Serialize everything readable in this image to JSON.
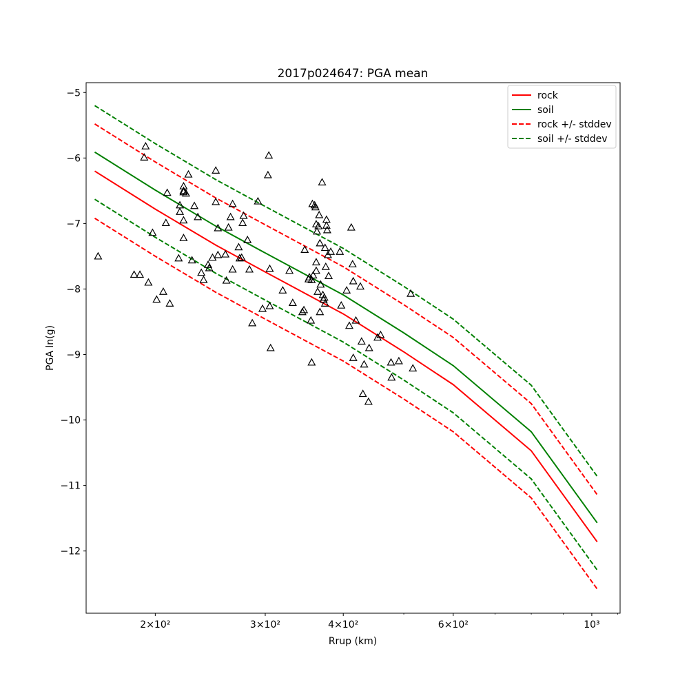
{
  "chart_data": {
    "type": "scatter",
    "title": "2017p024647: PGA mean",
    "xlabel": "Rrup (km)",
    "ylabel": "PGA ln(g)",
    "xscale": "log",
    "xlim": [
      155,
      1110
    ],
    "ylim": [
      -12.95,
      -4.85
    ],
    "grid": false,
    "legend_position": "upper right",
    "x_ticks": [
      {
        "value": 200,
        "label": "2×10²"
      },
      {
        "value": 300,
        "label": "3×10²"
      },
      {
        "value": 400,
        "label": "4×10²"
      },
      {
        "value": 600,
        "label": "6×10²"
      },
      {
        "value": 1000,
        "label": "10³"
      }
    ],
    "y_ticks": [
      {
        "value": -5,
        "label": "−5"
      },
      {
        "value": -6,
        "label": "−6"
      },
      {
        "value": -7,
        "label": "−7"
      },
      {
        "value": -8,
        "label": "−8"
      },
      {
        "value": -9,
        "label": "−9"
      },
      {
        "value": -10,
        "label": "−10"
      },
      {
        "value": -11,
        "label": "−11"
      },
      {
        "value": -12,
        "label": "−12"
      }
    ],
    "series": [
      {
        "name": "rock",
        "kind": "line",
        "color": "#ff0000",
        "dash": "solid",
        "x": [
          160,
          200,
          250,
          300,
          400,
          500,
          600,
          800,
          1020
        ],
        "y": [
          -6.2,
          -6.78,
          -7.33,
          -7.74,
          -8.38,
          -8.96,
          -9.46,
          -10.47,
          -11.86
        ]
      },
      {
        "name": "soil",
        "kind": "line",
        "color": "#008000",
        "dash": "solid",
        "x": [
          160,
          200,
          250,
          300,
          400,
          500,
          600,
          800,
          1020
        ],
        "y": [
          -5.91,
          -6.49,
          -7.04,
          -7.45,
          -8.09,
          -8.67,
          -9.17,
          -10.18,
          -11.57
        ]
      },
      {
        "name": "rock +/- stddev",
        "kind": "line",
        "color": "#ff0000",
        "dash": "dashed",
        "x": [
          160,
          200,
          250,
          300,
          400,
          500,
          600,
          800,
          1020
        ],
        "y": [
          -5.48,
          -6.06,
          -6.61,
          -7.02,
          -7.66,
          -8.24,
          -8.74,
          -9.75,
          -11.14
        ]
      },
      {
        "name": "",
        "kind": "line",
        "color": "#ff0000",
        "dash": "dashed",
        "legend": false,
        "x": [
          160,
          200,
          250,
          300,
          400,
          500,
          600,
          800,
          1020
        ],
        "y": [
          -6.92,
          -7.5,
          -8.05,
          -8.46,
          -9.1,
          -9.68,
          -10.18,
          -11.19,
          -12.58
        ]
      },
      {
        "name": "soil +/- stddev",
        "kind": "line",
        "color": "#008000",
        "dash": "dashed",
        "x": [
          160,
          200,
          250,
          300,
          400,
          500,
          600,
          800,
          1020
        ],
        "y": [
          -5.2,
          -5.78,
          -6.33,
          -6.74,
          -7.38,
          -7.96,
          -8.46,
          -9.47,
          -10.86
        ]
      },
      {
        "name": "",
        "kind": "line",
        "color": "#008000",
        "dash": "dashed",
        "legend": false,
        "x": [
          160,
          200,
          250,
          300,
          400,
          500,
          600,
          800,
          1020
        ],
        "y": [
          -6.63,
          -7.21,
          -7.76,
          -8.17,
          -8.81,
          -9.39,
          -9.89,
          -10.9,
          -12.29
        ]
      }
    ],
    "observations": {
      "marker": "triangle",
      "color": "#000000",
      "points": [
        [
          162,
          -7.5
        ],
        [
          185,
          -7.78
        ],
        [
          189,
          -7.78
        ],
        [
          193,
          -5.82
        ],
        [
          192,
          -5.99
        ],
        [
          195,
          -7.9
        ],
        [
          198,
          -7.14
        ],
        [
          201,
          -8.16
        ],
        [
          206,
          -8.04
        ],
        [
          208,
          -6.99
        ],
        [
          209,
          -6.53
        ],
        [
          211,
          -8.22
        ],
        [
          218,
          -7.53
        ],
        [
          219,
          -6.72
        ],
        [
          219,
          -6.82
        ],
        [
          222,
          -6.43
        ],
        [
          222,
          -6.5
        ],
        [
          222,
          -6.52
        ],
        [
          224,
          -6.54
        ],
        [
          222,
          -6.95
        ],
        [
          222,
          -7.22
        ],
        [
          226,
          -6.25
        ],
        [
          229,
          -7.56
        ],
        [
          231,
          -6.73
        ],
        [
          234,
          -6.9
        ],
        [
          237,
          -7.75
        ],
        [
          239,
          -7.86
        ],
        [
          243,
          -7.63
        ],
        [
          244,
          -7.68
        ],
        [
          247,
          -7.52
        ],
        [
          250,
          -6.19
        ],
        [
          250,
          -6.67
        ],
        [
          252,
          -7.07
        ],
        [
          252,
          -7.48
        ],
        [
          259,
          -7.47
        ],
        [
          260,
          -7.87
        ],
        [
          262,
          -7.06
        ],
        [
          264,
          -6.9
        ],
        [
          266,
          -6.7
        ],
        [
          266,
          -7.7
        ],
        [
          272,
          -7.36
        ],
        [
          273,
          -7.53
        ],
        [
          275,
          -7.52
        ],
        [
          276,
          -6.99
        ],
        [
          277,
          -6.88
        ],
        [
          281,
          -7.25
        ],
        [
          283,
          -7.7
        ],
        [
          286,
          -8.52
        ],
        [
          292,
          -6.66
        ],
        [
          297,
          -8.3
        ],
        [
          303,
          -6.26
        ],
        [
          304,
          -5.96
        ],
        [
          305,
          -7.69
        ],
        [
          305,
          -8.26
        ],
        [
          306,
          -8.9
        ],
        [
          320,
          -8.02
        ],
        [
          328,
          -7.72
        ],
        [
          332,
          -8.21
        ],
        [
          344,
          -8.35
        ],
        [
          346,
          -8.32
        ],
        [
          347,
          -7.4
        ],
        [
          352,
          -7.85
        ],
        [
          353,
          -7.82
        ],
        [
          355,
          -8.48
        ],
        [
          357,
          -6.7
        ],
        [
          356,
          -7.86
        ],
        [
          356,
          -9.12
        ],
        [
          358,
          -7.79
        ],
        [
          360,
          -6.72
        ],
        [
          361,
          -6.75
        ],
        [
          362,
          -7.72
        ],
        [
          362,
          -7.59
        ],
        [
          362,
          -7.01
        ],
        [
          363,
          -7.12
        ],
        [
          364,
          -8.04
        ],
        [
          365,
          -7.04
        ],
        [
          366,
          -6.87
        ],
        [
          367,
          -7.3
        ],
        [
          367,
          -8.35
        ],
        [
          368,
          -7.93
        ],
        [
          370,
          -6.37
        ],
        [
          371,
          -8.09
        ],
        [
          372,
          -8.16
        ],
        [
          373,
          -8.13
        ],
        [
          374,
          -8.22
        ],
        [
          374,
          -7.37
        ],
        [
          375,
          -7.66
        ],
        [
          376,
          -6.94
        ],
        [
          376,
          -7.03
        ],
        [
          377,
          -7.1
        ],
        [
          378,
          -7.48
        ],
        [
          379,
          -7.8
        ],
        [
          382,
          -7.43
        ],
        [
          395,
          -7.43
        ],
        [
          397,
          -8.25
        ],
        [
          405,
          -8.02
        ],
        [
          409,
          -8.56
        ],
        [
          412,
          -7.06
        ],
        [
          414,
          -7.62
        ],
        [
          415,
          -7.88
        ],
        [
          415,
          -9.05
        ],
        [
          419,
          -8.48
        ],
        [
          426,
          -7.96
        ],
        [
          428,
          -8.8
        ],
        [
          430,
          -9.6
        ],
        [
          432,
          -9.15
        ],
        [
          439,
          -9.72
        ],
        [
          440,
          -8.9
        ],
        [
          454,
          -8.74
        ],
        [
          459,
          -8.7
        ],
        [
          477,
          -9.12
        ],
        [
          478,
          -9.35
        ],
        [
          491,
          -9.1
        ],
        [
          513,
          -8.07
        ],
        [
          517,
          -9.21
        ]
      ]
    }
  }
}
